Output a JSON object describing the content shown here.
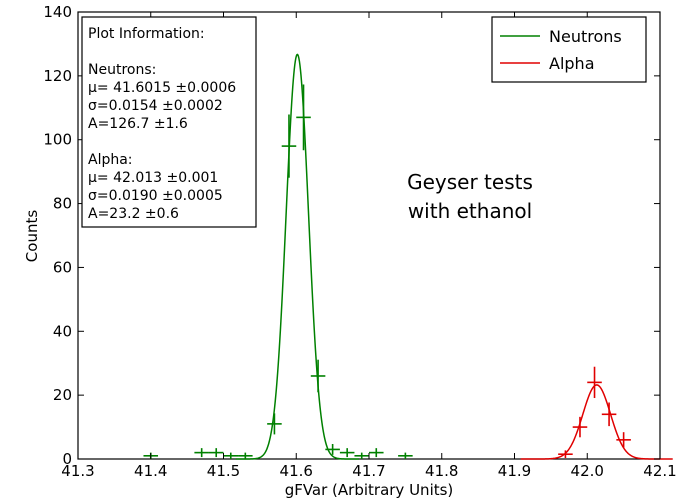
{
  "chart_data": {
    "type": "scatter",
    "xlabel": "gFVar (Arbitrary Units)",
    "ylabel": "Counts",
    "xlim": [
      41.3,
      42.1
    ],
    "ylim": [
      0,
      140
    ],
    "xticks": [
      "41.3",
      "41.4",
      "41.5",
      "41.6",
      "41.7",
      "41.8",
      "41.9",
      "42.0",
      "42.1"
    ],
    "yticks": [
      "0",
      "20",
      "40",
      "60",
      "80",
      "100",
      "120",
      "140"
    ],
    "grid": false,
    "legend_position": "top-right",
    "series": [
      {
        "name": "Neutrons",
        "color": "#008000",
        "fit": {
          "mu": 41.6015,
          "sigma": 0.0154,
          "A": 126.7
        },
        "bin_half_width": 0.01,
        "points": [
          {
            "x": 41.4,
            "y": 1,
            "yerr": 1
          },
          {
            "x": 41.47,
            "y": 2,
            "yerr": 1.4
          },
          {
            "x": 41.49,
            "y": 2,
            "yerr": 1.4
          },
          {
            "x": 41.51,
            "y": 1,
            "yerr": 1
          },
          {
            "x": 41.53,
            "y": 1,
            "yerr": 1
          },
          {
            "x": 41.57,
            "y": 11,
            "yerr": 3.3
          },
          {
            "x": 41.59,
            "y": 98,
            "yerr": 9.9
          },
          {
            "x": 41.61,
            "y": 107,
            "yerr": 10.3
          },
          {
            "x": 41.63,
            "y": 26,
            "yerr": 5.1
          },
          {
            "x": 41.65,
            "y": 3,
            "yerr": 1.7
          },
          {
            "x": 41.67,
            "y": 2,
            "yerr": 1.4
          },
          {
            "x": 41.69,
            "y": 1,
            "yerr": 1
          },
          {
            "x": 41.71,
            "y": 2,
            "yerr": 1.4
          },
          {
            "x": 41.75,
            "y": 1,
            "yerr": 1
          }
        ]
      },
      {
        "name": "Alpha",
        "color": "#e00000",
        "fit": {
          "mu": 42.013,
          "sigma": 0.019,
          "A": 23.2
        },
        "bin_half_width": 0.01,
        "points": [
          {
            "x": 41.97,
            "y": 1.5,
            "yerr": 1.2
          },
          {
            "x": 41.99,
            "y": 10,
            "yerr": 3.2
          },
          {
            "x": 42.01,
            "y": 24,
            "yerr": 4.9
          },
          {
            "x": 42.03,
            "y": 14,
            "yerr": 3.7
          },
          {
            "x": 42.05,
            "y": 6,
            "yerr": 2.4
          }
        ]
      }
    ],
    "info_box": {
      "title": "Plot Information:",
      "neutrons_header": "Neutrons:",
      "neutrons_mu": "μ= 41.6015 ±0.0006",
      "neutrons_sigma": "σ=0.0154 ±0.0002",
      "neutrons_A": "A=126.7 ±1.6",
      "alpha_header": "Alpha:",
      "alpha_mu": "μ= 42.013 ±0.001",
      "alpha_sigma": "σ=0.0190 ±0.0005",
      "alpha_A": "A=23.2 ±0.6"
    },
    "annotation": [
      "Geyser tests",
      "with ethanol"
    ]
  }
}
